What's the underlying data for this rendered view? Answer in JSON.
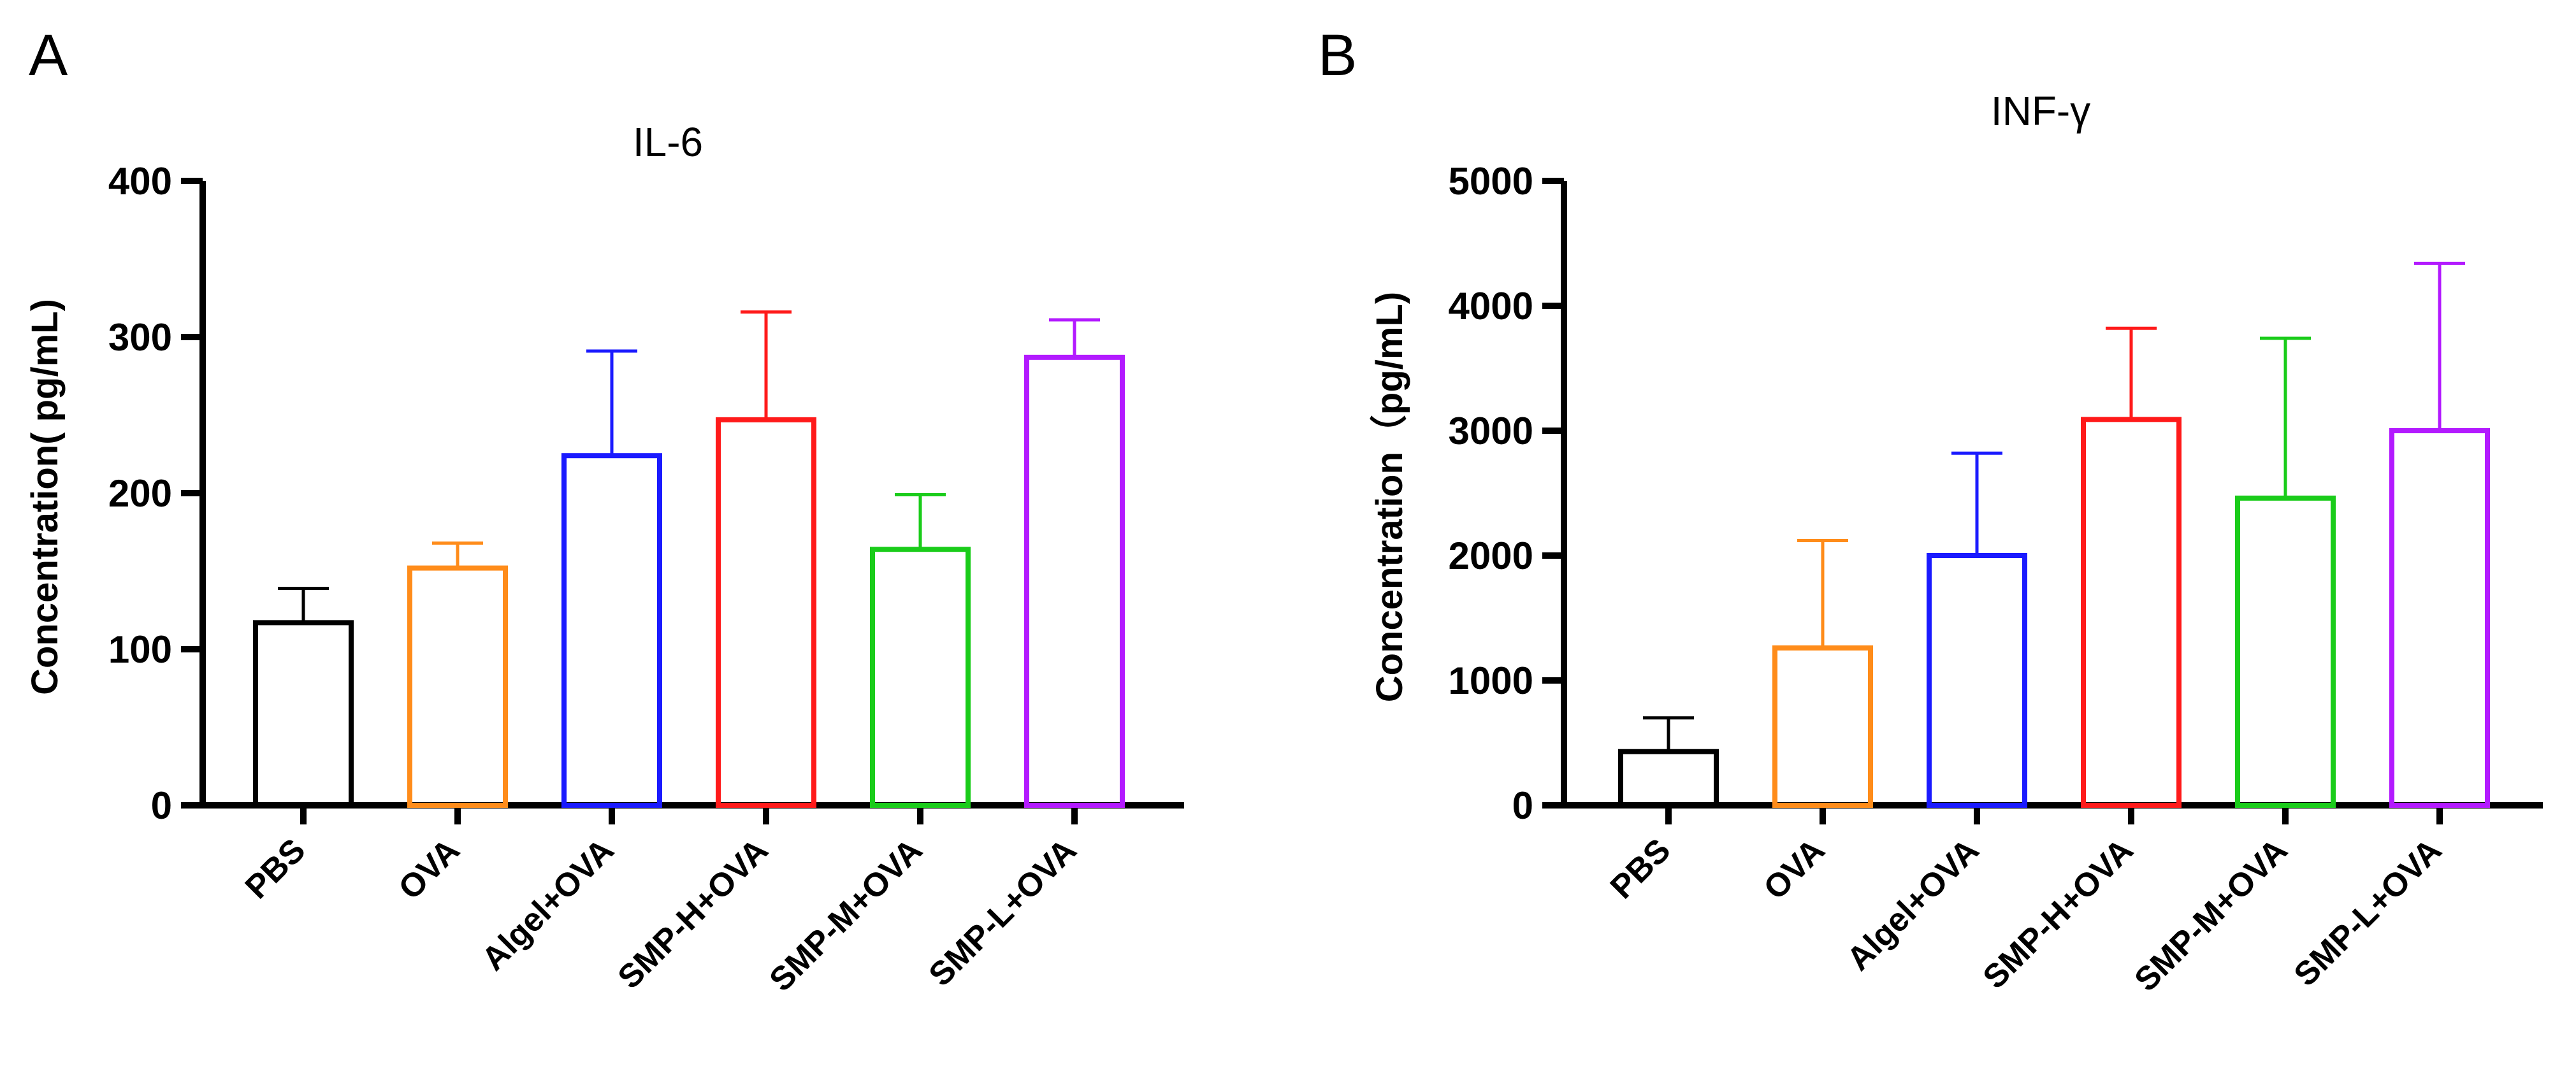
{
  "chart_data": [
    {
      "panel": "A",
      "type": "bar",
      "title": "IL-6",
      "xlabel": "",
      "ylabel": "Concentration( pg/mL)",
      "ylim": [
        0,
        400
      ],
      "yticks": [
        "0",
        "100",
        "200",
        "300",
        "400"
      ],
      "grid": false,
      "error_bars": "upper",
      "categories": [
        "PBS",
        "OVA",
        "Algel+OVA",
        "SMP-H+OVA",
        "SMP-M+OVA",
        "SMP-L+OVA"
      ],
      "values": [
        117,
        152,
        224,
        247,
        164,
        287
      ],
      "errors": [
        22,
        16,
        67,
        69,
        35,
        24
      ],
      "colors": [
        "#000000",
        "#ff8c1a",
        "#1a1aff",
        "#ff1a1a",
        "#1acc1a",
        "#b31aff"
      ]
    },
    {
      "panel": "B",
      "type": "bar",
      "title": "INF-γ",
      "xlabel": "",
      "ylabel": "Concentration（pg/mL)",
      "ylim": [
        0,
        5000
      ],
      "yticks": [
        "0",
        "1000",
        "2000",
        "3000",
        "4000",
        "5000"
      ],
      "grid": false,
      "error_bars": "upper",
      "categories": [
        "PBS",
        "OVA",
        "Algel+OVA",
        "SMP-H+OVA",
        "SMP-M+OVA",
        "SMP-L+OVA"
      ],
      "values": [
        430,
        1260,
        2000,
        3090,
        2460,
        3000
      ],
      "errors": [
        270,
        860,
        820,
        730,
        1280,
        1340
      ],
      "colors": [
        "#000000",
        "#ff8c1a",
        "#1a1aff",
        "#ff1a1a",
        "#1acc1a",
        "#b31aff"
      ]
    }
  ]
}
